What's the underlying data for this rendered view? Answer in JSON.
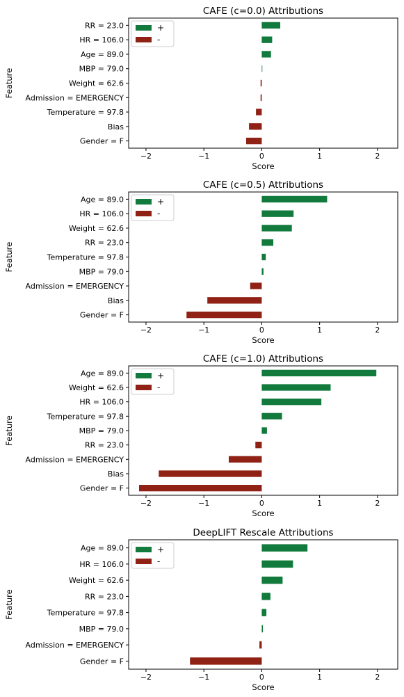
{
  "colors": {
    "positive": "#127a3c",
    "negative": "#8f2214"
  },
  "chart_data": [
    {
      "type": "bar",
      "orientation": "horizontal",
      "title": "CAFE (c=0.0) Attributions",
      "xlabel": "Score",
      "ylabel": "Feature",
      "xlim": [
        -2.3,
        2.35
      ],
      "xticks": [
        -2,
        -1,
        0,
        1,
        2
      ],
      "xtick_labels": [
        "−2",
        "−1",
        "0",
        "1",
        "2"
      ],
      "grid": false,
      "legend": {
        "position": "top-left",
        "entries": [
          "+",
          "-"
        ]
      },
      "categories": [
        "RR = 23.0",
        "HR = 106.0",
        "Age = 89.0",
        "MBP = 79.0",
        "Weight = 62.6",
        "Admission = EMERGENCY",
        "Temperature = 97.8",
        "Bias",
        "Gender = F"
      ],
      "values": [
        0.32,
        0.18,
        0.16,
        0.01,
        -0.02,
        -0.02,
        -0.1,
        -0.22,
        -0.27
      ]
    },
    {
      "type": "bar",
      "orientation": "horizontal",
      "title": "CAFE (c=0.5) Attributions",
      "xlabel": "Score",
      "ylabel": "Feature",
      "xlim": [
        -2.3,
        2.35
      ],
      "xticks": [
        -2,
        -1,
        0,
        1,
        2
      ],
      "xtick_labels": [
        "−2",
        "−1",
        "0",
        "1",
        "2"
      ],
      "grid": false,
      "legend": {
        "position": "top-left",
        "entries": [
          "+",
          "-"
        ]
      },
      "categories": [
        "Age = 89.0",
        "HR = 106.0",
        "Weight = 62.6",
        "RR = 23.0",
        "Temperature = 97.8",
        "MBP = 79.0",
        "Admission = EMERGENCY",
        "Bias",
        "Gender = F"
      ],
      "values": [
        1.13,
        0.55,
        0.52,
        0.2,
        0.07,
        0.03,
        -0.2,
        -0.94,
        -1.3
      ]
    },
    {
      "type": "bar",
      "orientation": "horizontal",
      "title": "CAFE (c=1.0) Attributions",
      "xlabel": "Score",
      "ylabel": "Feature",
      "xlim": [
        -2.3,
        2.35
      ],
      "xticks": [
        -2,
        -1,
        0,
        1,
        2
      ],
      "xtick_labels": [
        "−2",
        "−1",
        "0",
        "1",
        "2"
      ],
      "grid": false,
      "legend": {
        "position": "top-left",
        "entries": [
          "+",
          "-"
        ]
      },
      "categories": [
        "Age = 89.0",
        "Weight = 62.6",
        "HR = 106.0",
        "Temperature = 97.8",
        "MBP = 79.0",
        "RR = 23.0",
        "Admission = EMERGENCY",
        "Bias",
        "Gender = F"
      ],
      "values": [
        1.98,
        1.19,
        1.03,
        0.35,
        0.09,
        -0.11,
        -0.57,
        -1.78,
        -2.12
      ]
    },
    {
      "type": "bar",
      "orientation": "horizontal",
      "title": "DeepLIFT Rescale Attributions",
      "xlabel": "Score",
      "ylabel": "Feature",
      "xlim": [
        -2.3,
        2.35
      ],
      "xticks": [
        -2,
        -1,
        0,
        1,
        2
      ],
      "xtick_labels": [
        "−2",
        "−1",
        "0",
        "1",
        "2"
      ],
      "grid": false,
      "legend": {
        "position": "top-left",
        "entries": [
          "+",
          "-"
        ]
      },
      "categories": [
        "Age = 89.0",
        "HR = 106.0",
        "Weight = 62.6",
        "RR = 23.0",
        "Temperature = 97.8",
        "MBP = 79.0",
        "Admission = EMERGENCY",
        "Gender = F"
      ],
      "values": [
        0.79,
        0.54,
        0.36,
        0.15,
        0.08,
        0.02,
        -0.04,
        -1.24
      ]
    }
  ]
}
